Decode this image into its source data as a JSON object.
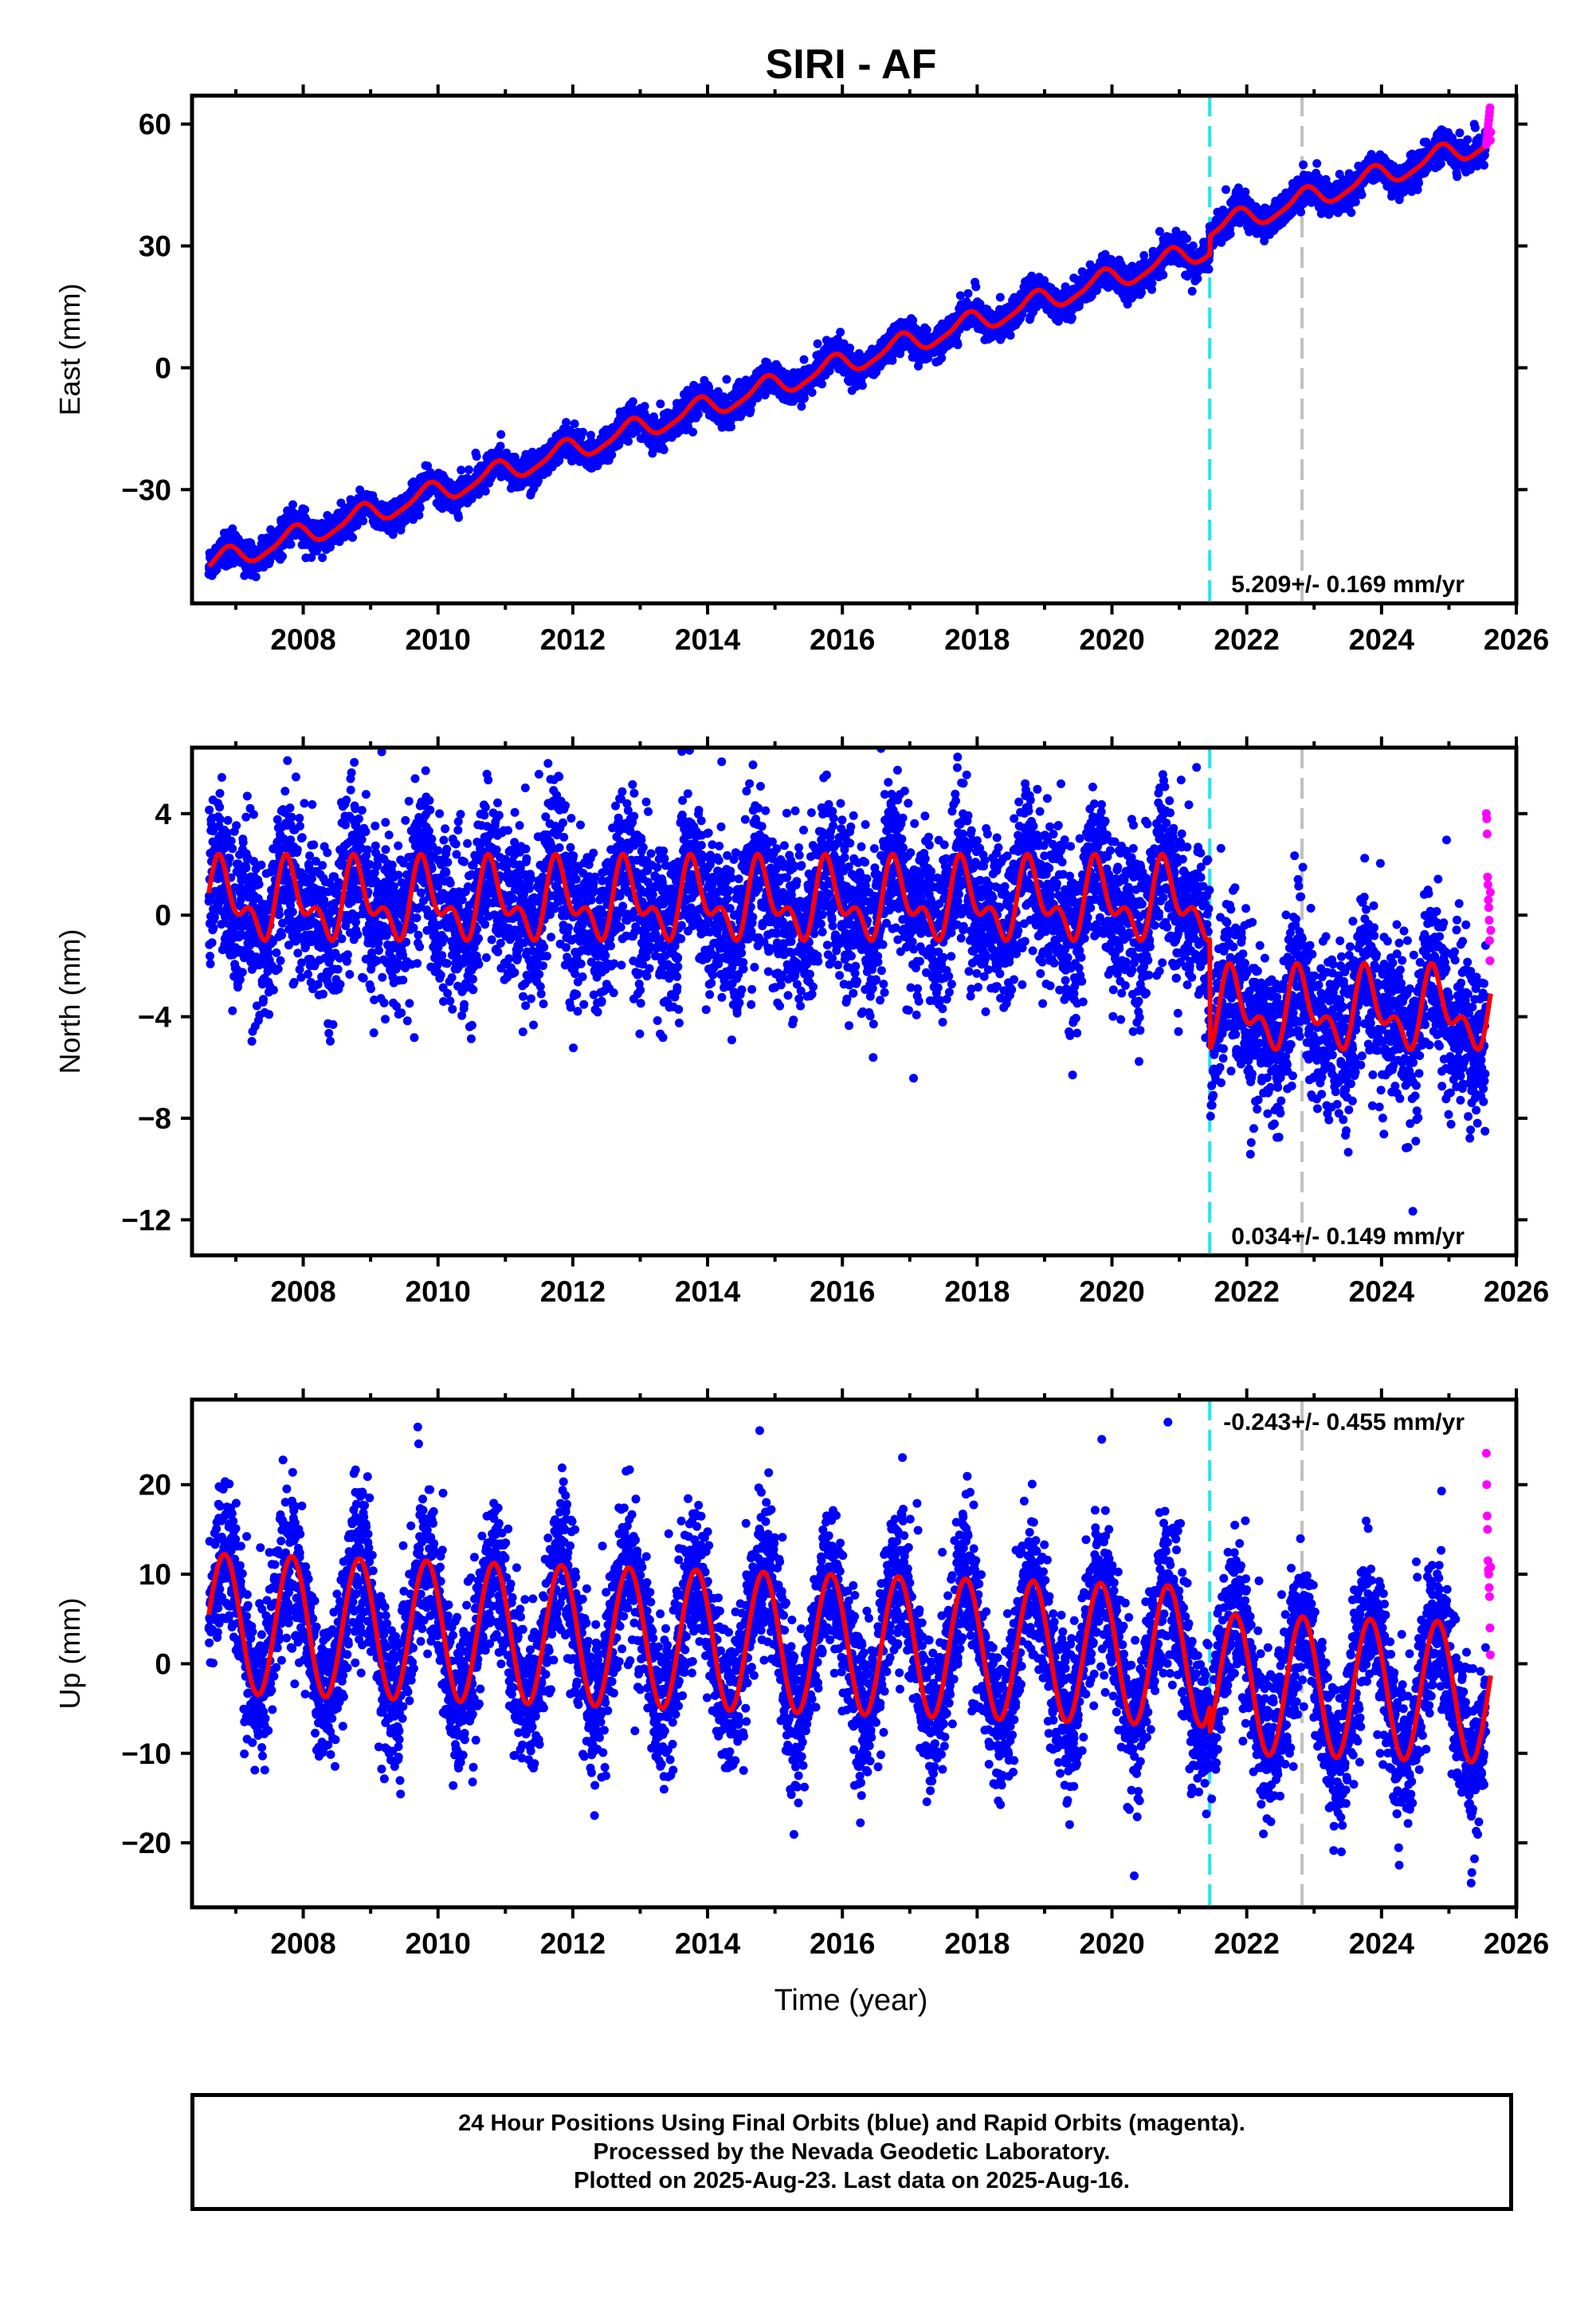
{
  "chart_data": {
    "type": "scatter",
    "title": "SIRI - AF",
    "xlabel": "Time (year)",
    "xlim": [
      2006.35,
      2026.0
    ],
    "x_ticks": [
      2008,
      2010,
      2012,
      2014,
      2016,
      2018,
      2020,
      2022,
      2024,
      2026
    ],
    "data_start": 2006.6,
    "data_end": 2025.62,
    "final_orbits_end": 2025.55,
    "reference_lines": [
      {
        "x": 2021.45,
        "color": "#1ee8f0",
        "style": "dashed"
      },
      {
        "x": 2022.82,
        "color": "#c0c0c0",
        "style": "dashed"
      }
    ],
    "marker_colors": {
      "final_orbits": "#0000ff",
      "rapid_orbits": "#ff00ff",
      "model": "#ff0000"
    },
    "panels": [
      {
        "name": "east",
        "ylabel": "East (mm)",
        "ylim": [
          -58,
          67
        ],
        "y_ticks": [
          -30,
          0,
          30,
          60
        ],
        "velocity_label": "5.209+/- 0.169 mm/yr",
        "velocity_label_position": "bottom-right",
        "model": {
          "offset": -48.5,
          "rate": 5.25,
          "annual_amp": 2.6,
          "annual_phase": 0.6,
          "semi_amp": 0.6,
          "semi_phase": 0.3,
          "steps": [
            {
              "x": 2021.45,
              "size": 4.5
            }
          ],
          "noise_sd": 1.8
        },
        "rapid_values": [
          55,
          56,
          57,
          58,
          59,
          60,
          61,
          62,
          63,
          64,
          56,
          58
        ]
      },
      {
        "name": "north",
        "ylabel": "North (mm)",
        "ylim": [
          -13.4,
          6.6
        ],
        "y_ticks": [
          -12,
          -8,
          -4,
          0,
          4
        ],
        "velocity_label": "0.034+/- 0.149 mm/yr",
        "velocity_label_position": "bottom-right",
        "model": {
          "offset": 0.5,
          "rate": 0.0,
          "annual_amp": 1.2,
          "annual_phase": 0.55,
          "semi_amp": 0.8,
          "semi_phase": 0.1,
          "steps": [
            {
              "x": 2021.45,
              "size": -4.3
            }
          ],
          "noise_sd": 1.6
        },
        "rapid_values": [
          4.0,
          3.8,
          3.2,
          1.5,
          1.2,
          0.6,
          0.3,
          -0.2,
          -1.0,
          -1.8,
          0.9,
          -0.6
        ]
      },
      {
        "name": "up",
        "ylabel": "Up (mm)",
        "ylim": [
          -27.2,
          29.5
        ],
        "y_ticks": [
          -20,
          -10,
          0,
          10,
          20
        ],
        "velocity_label": "-0.243+/- 0.455 mm/yr",
        "velocity_label_position": "top-right",
        "model": {
          "offset": 4.5,
          "rate": -0.25,
          "annual_amp": 7.8,
          "annual_phase": 0.58,
          "semi_amp": 0.0,
          "semi_phase": 0.0,
          "steps": [
            {
              "x": 2021.45,
              "size": -3.0
            }
          ],
          "noise_sd": 4.2
        },
        "rapid_values": [
          23.5,
          20.0,
          16.5,
          15.0,
          11.5,
          10.5,
          10.0,
          8.5,
          7.5,
          4.0,
          1.0,
          10.8
        ]
      }
    ]
  },
  "footer": {
    "line1": "24 Hour Positions Using Final Orbits (blue) and Rapid Orbits (magenta).",
    "line2": "Processed by the Nevada Geodetic Laboratory.",
    "line3": "Plotted on 2025-Aug-23. Last data on 2025-Aug-16."
  }
}
